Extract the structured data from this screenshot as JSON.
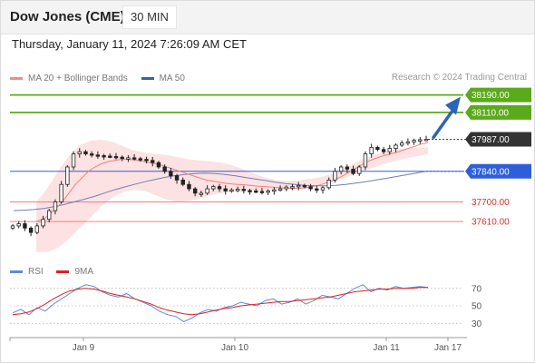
{
  "header": {
    "title": "Dow Jones (CME)",
    "interval": "30 MIN"
  },
  "datetime": "Thursday, January 11, 2024 7:26:09 AM CET",
  "copyright": "Research © 2024 Trading Central",
  "legend": [
    {
      "label": "MA 20 + Bollinger Bands",
      "color": "#f28b82"
    },
    {
      "label": "MA 50",
      "color": "#3a5fa8"
    }
  ],
  "colors": {
    "resistance": "#5aaa1c",
    "pivot": "#2f5fd8",
    "support": "#f08080",
    "support_text": "#d9302b",
    "current": "#333333",
    "bollinger_fill": "#fbd8d8",
    "ma20": "#f08080",
    "ma50": "#6f7fb8",
    "rsi": "#5b8bd9",
    "rsi_ma": "#e02020",
    "arrow": "#2a65b6"
  },
  "chart_data": [
    {
      "type": "candlestick",
      "title": "Dow Jones (CME) 30 MIN",
      "ylim": [
        37440,
        38230
      ],
      "price_levels": [
        {
          "value": "38190.00",
          "role": "resistance"
        },
        {
          "value": "38110.00",
          "role": "resistance"
        },
        {
          "value": "37987.00",
          "role": "current"
        },
        {
          "value": "37840.00",
          "role": "pivot"
        },
        {
          "value": "37700.00",
          "role": "support"
        },
        {
          "value": "37610.00",
          "role": "support"
        }
      ],
      "close_series": [
        37590,
        37600,
        37580,
        37560,
        37590,
        37620,
        37660,
        37700,
        37780,
        37860,
        37920,
        37930,
        37920,
        37915,
        37912,
        37910,
        37908,
        37905,
        37900,
        37902,
        37898,
        37895,
        37890,
        37880,
        37860,
        37840,
        37820,
        37800,
        37780,
        37760,
        37740,
        37740,
        37760,
        37770,
        37760,
        37750,
        37755,
        37758,
        37752,
        37750,
        37748,
        37745,
        37750,
        37755,
        37760,
        37768,
        37770,
        37775,
        37770,
        37760,
        37755,
        37765,
        37800,
        37840,
        37860,
        37850,
        37830,
        37860,
        37920,
        37950,
        37940,
        37930,
        37945,
        37960,
        37970,
        37975,
        37982,
        37985,
        37987
      ],
      "ma20_series": [
        37610,
        37620,
        37640,
        37670,
        37700,
        37740,
        37780,
        37810,
        37840,
        37860,
        37875,
        37885,
        37890,
        37895,
        37895,
        37892,
        37888,
        37882,
        37876,
        37870,
        37860,
        37850,
        37840,
        37830,
        37820,
        37810,
        37800,
        37795,
        37790,
        37785,
        37782,
        37780,
        37778,
        37775,
        37772,
        37770,
        37768,
        37766,
        37764,
        37762,
        37762,
        37764,
        37768,
        37774,
        37782,
        37792,
        37805,
        37820,
        37838,
        37855,
        37872,
        37888,
        37900,
        37910,
        37918,
        37925,
        37935,
        37945,
        37955,
        37965,
        37972
      ],
      "ma50_series": [
        37660,
        37662,
        37665,
        37670,
        37678,
        37688,
        37700,
        37712,
        37725,
        37740,
        37755,
        37768,
        37780,
        37792,
        37802,
        37812,
        37820,
        37826,
        37830,
        37832,
        37830,
        37826,
        37820,
        37812,
        37805,
        37798,
        37790,
        37784,
        37780,
        37776,
        37774,
        37774,
        37776,
        37780,
        37786,
        37792,
        37800,
        37808,
        37816,
        37824,
        37832,
        37840
      ],
      "bb_upper": [
        37700,
        37760,
        37840,
        37910,
        37960,
        37980,
        37985,
        37975,
        37955,
        37935,
        37925,
        37920,
        37915,
        37905,
        37895,
        37890,
        37885,
        37880,
        37868,
        37850,
        37830,
        37812,
        37800,
        37795,
        37798,
        37805,
        37812,
        37825,
        37845,
        37870,
        37895,
        37915,
        37930,
        37940,
        37945,
        37948,
        37950
      ],
      "bb_lower": [
        37470,
        37470,
        37490,
        37530,
        37580,
        37630,
        37680,
        37720,
        37745,
        37755,
        37750,
        37730,
        37710,
        37700,
        37705,
        37715,
        37730,
        37740,
        37745,
        37748,
        37750,
        37752,
        37754,
        37758,
        37762,
        37770,
        37778,
        37790,
        37805,
        37822,
        37840,
        37858,
        37874,
        37888,
        37900,
        37910,
        37920
      ],
      "x_ticks": [
        "Jan 9",
        "Jan 10",
        "Jan 11",
        "Jan 17"
      ]
    },
    {
      "type": "line",
      "title": "RSI",
      "legend": [
        "RSI",
        "9MA"
      ],
      "ylim": [
        20,
        80
      ],
      "y_ticks": [
        "70",
        "50",
        "30"
      ],
      "rsi_series": [
        42,
        46,
        40,
        48,
        44,
        52,
        58,
        64,
        70,
        74,
        72,
        66,
        62,
        60,
        64,
        58,
        54,
        50,
        44,
        40,
        38,
        32,
        36,
        42,
        46,
        44,
        48,
        50,
        54,
        52,
        50,
        56,
        58,
        52,
        54,
        58,
        52,
        56,
        62,
        60,
        58,
        64,
        70,
        74,
        66,
        70,
        68,
        72,
        70,
        71,
        72,
        71
      ],
      "rsi_ma_series": [
        40,
        41,
        43,
        47,
        52,
        58,
        63,
        67,
        69,
        70,
        69,
        67,
        64,
        62,
        60,
        58,
        55,
        52,
        48,
        45,
        43,
        41,
        40,
        41,
        43,
        45,
        47,
        48,
        50,
        51,
        52,
        53,
        54,
        55,
        55,
        56,
        57,
        58,
        59,
        60,
        62,
        64,
        66,
        67,
        68,
        69,
        69,
        70,
        70,
        70,
        71,
        71
      ]
    }
  ]
}
